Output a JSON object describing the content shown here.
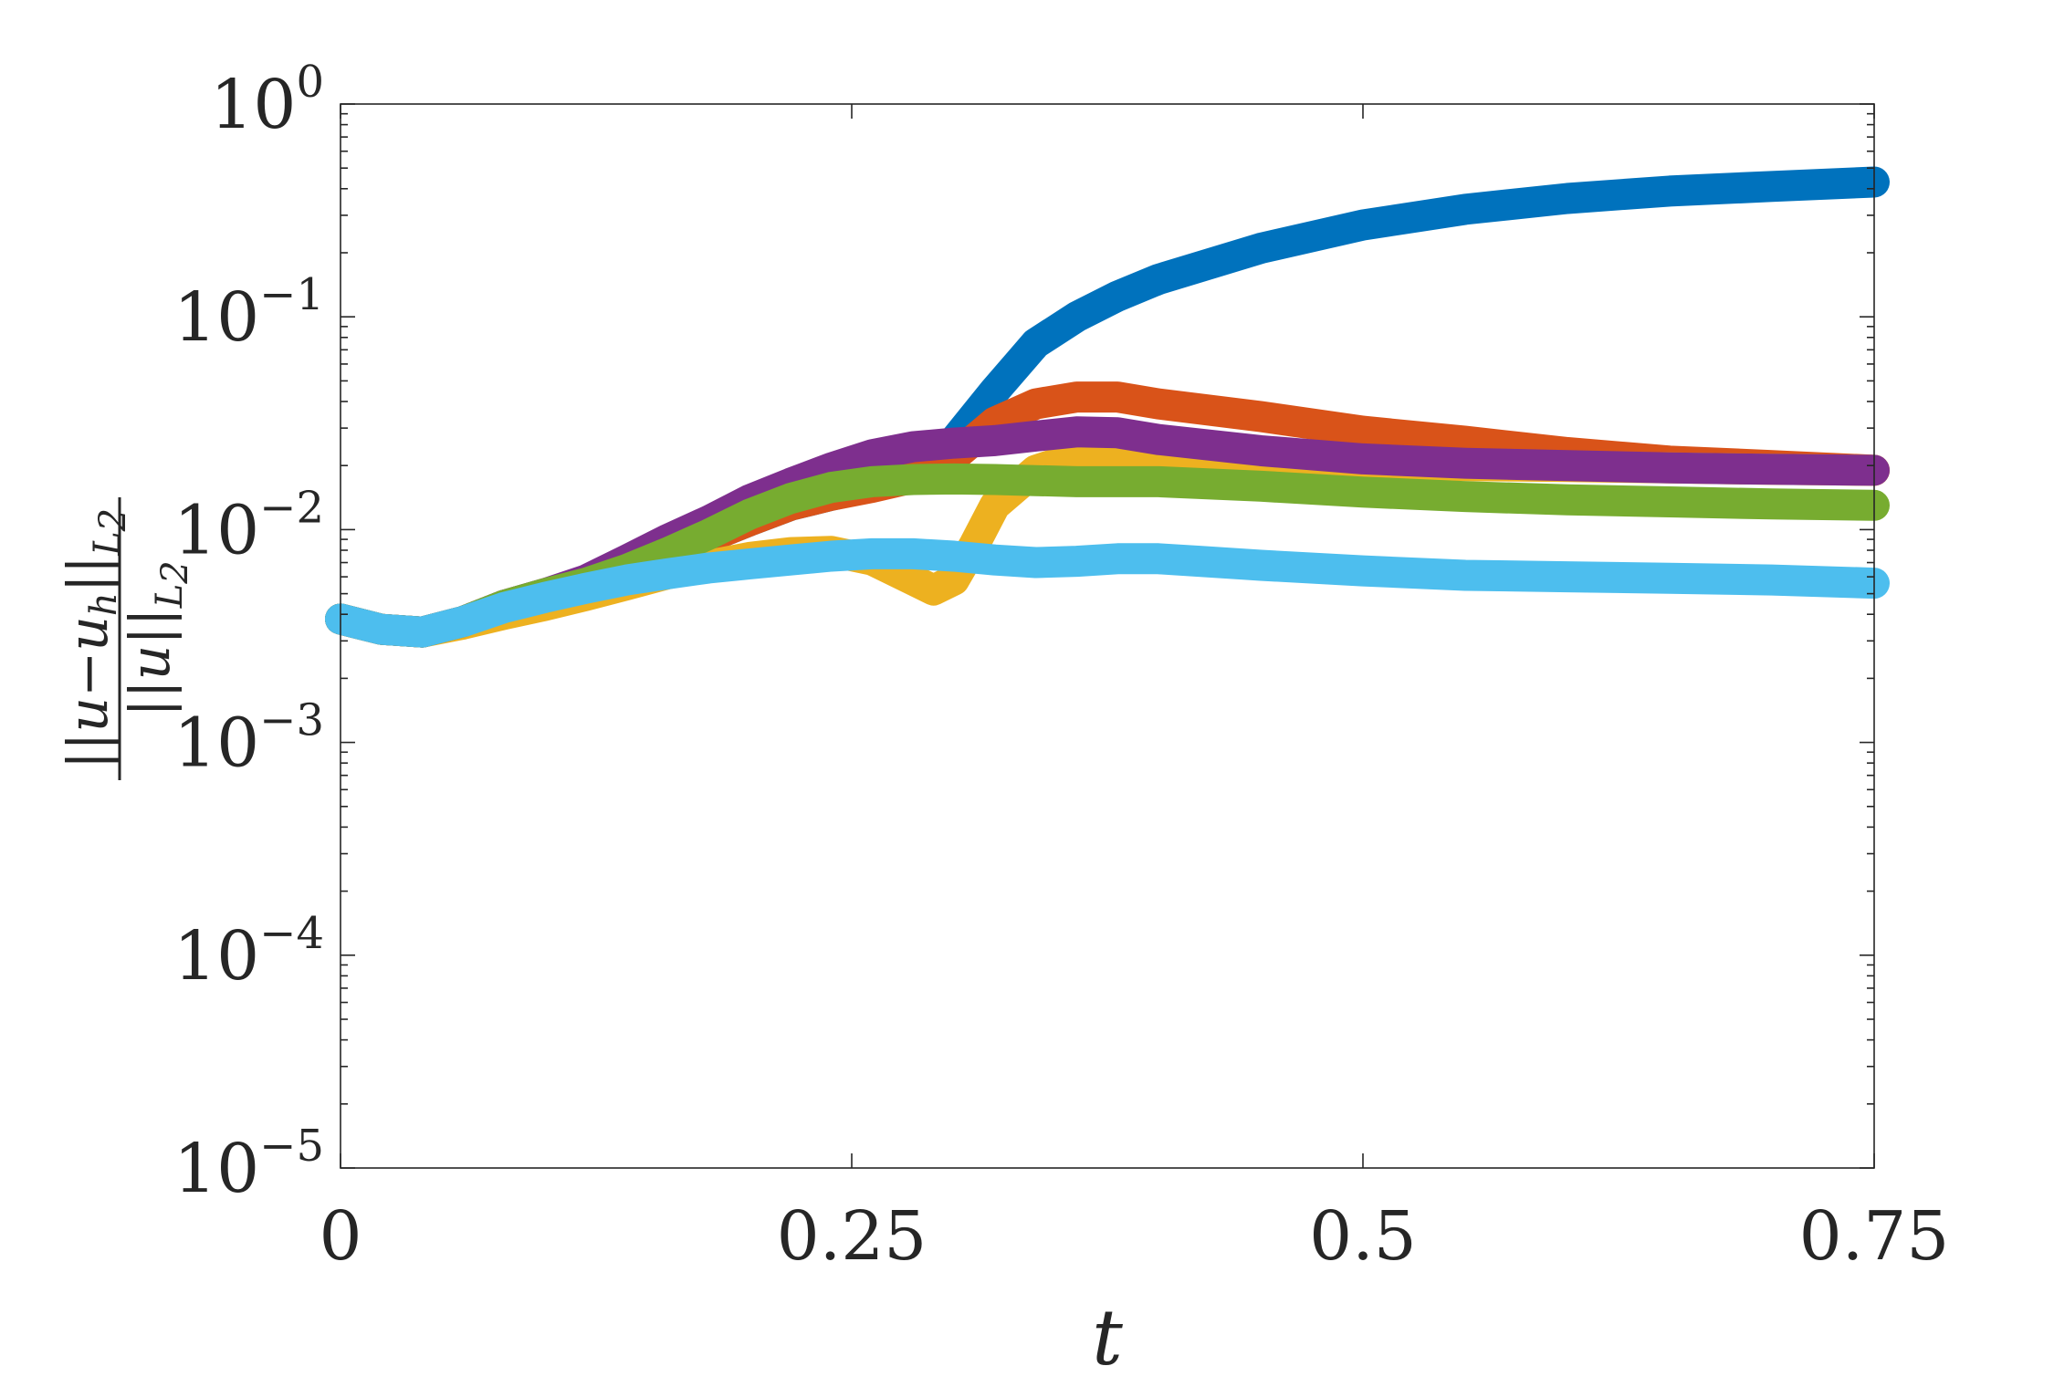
{
  "chart_data": {
    "type": "line",
    "title": "",
    "xlabel": "t",
    "ylabel": {
      "numerator": "||u−u",
      "numerator_sub": "h",
      "numerator_tail": "||",
      "numerator_norm_sub": "L",
      "numerator_norm_sub2": "2",
      "denominator": "||u||",
      "denominator_sub": "L",
      "denominator_sub2": "2"
    },
    "xlim": [
      0,
      0.75
    ],
    "ylim": [
      1e-05,
      1
    ],
    "yscale": "log",
    "grid": false,
    "legend": "none",
    "xticks": [
      {
        "value": 0,
        "label": "0"
      },
      {
        "value": 0.25,
        "label": "0.25"
      },
      {
        "value": 0.5,
        "label": "0.5"
      },
      {
        "value": 0.75,
        "label": "0.75"
      }
    ],
    "yticks": [
      {
        "value": 1,
        "base": "10",
        "exp": "0"
      },
      {
        "value": 0.1,
        "base": "10",
        "exp": "−1"
      },
      {
        "value": 0.01,
        "base": "10",
        "exp": "−2"
      },
      {
        "value": 0.001,
        "base": "10",
        "exp": "−3"
      },
      {
        "value": 0.0001,
        "base": "10",
        "exp": "−4"
      },
      {
        "value": 1e-05,
        "base": "10",
        "exp": "−5"
      }
    ],
    "series": [
      {
        "color": "#0072BD",
        "x": [
          0,
          0.02,
          0.04,
          0.06,
          0.08,
          0.1,
          0.12,
          0.14,
          0.16,
          0.18,
          0.2,
          0.22,
          0.24,
          0.26,
          0.28,
          0.3,
          0.32,
          0.34,
          0.36,
          0.38,
          0.4,
          0.45,
          0.5,
          0.55,
          0.6,
          0.65,
          0.7,
          0.75
        ],
        "y": [
          0.0038,
          0.0034,
          0.0033,
          0.0037,
          0.0044,
          0.005,
          0.0056,
          0.0065,
          0.0078,
          0.0092,
          0.011,
          0.013,
          0.0145,
          0.016,
          0.019,
          0.026,
          0.045,
          0.075,
          0.1,
          0.125,
          0.15,
          0.21,
          0.27,
          0.32,
          0.36,
          0.39,
          0.41,
          0.43
        ]
      },
      {
        "color": "#D95319",
        "x": [
          0,
          0.02,
          0.04,
          0.06,
          0.08,
          0.1,
          0.12,
          0.14,
          0.16,
          0.18,
          0.2,
          0.22,
          0.24,
          0.26,
          0.28,
          0.3,
          0.32,
          0.34,
          0.36,
          0.38,
          0.4,
          0.45,
          0.5,
          0.55,
          0.6,
          0.65,
          0.7,
          0.75
        ],
        "y": [
          0.0038,
          0.0034,
          0.0033,
          0.0037,
          0.0044,
          0.005,
          0.0056,
          0.0065,
          0.0078,
          0.0092,
          0.011,
          0.013,
          0.0145,
          0.0158,
          0.0175,
          0.022,
          0.032,
          0.039,
          0.042,
          0.042,
          0.039,
          0.034,
          0.029,
          0.026,
          0.023,
          0.021,
          0.02,
          0.019
        ]
      },
      {
        "color": "#EDB120",
        "x": [
          0,
          0.02,
          0.04,
          0.06,
          0.08,
          0.1,
          0.12,
          0.14,
          0.16,
          0.18,
          0.2,
          0.22,
          0.24,
          0.26,
          0.28,
          0.29,
          0.3,
          0.31,
          0.32,
          0.34,
          0.36,
          0.38,
          0.4,
          0.45,
          0.5,
          0.55,
          0.6,
          0.65,
          0.7,
          0.75
        ],
        "y": [
          0.0038,
          0.0034,
          0.0033,
          0.0036,
          0.004,
          0.0044,
          0.0049,
          0.0055,
          0.0062,
          0.0068,
          0.0074,
          0.0078,
          0.0079,
          0.0072,
          0.0058,
          0.0052,
          0.0058,
          0.0085,
          0.013,
          0.019,
          0.022,
          0.022,
          0.0215,
          0.021,
          0.0205,
          0.02,
          0.0198,
          0.0195,
          0.0192,
          0.019
        ]
      },
      {
        "color": "#7E2F8E",
        "x": [
          0,
          0.02,
          0.04,
          0.06,
          0.08,
          0.1,
          0.12,
          0.14,
          0.16,
          0.18,
          0.2,
          0.22,
          0.24,
          0.26,
          0.28,
          0.3,
          0.32,
          0.34,
          0.36,
          0.38,
          0.4,
          0.45,
          0.5,
          0.55,
          0.6,
          0.65,
          0.7,
          0.75
        ],
        "y": [
          0.0038,
          0.0034,
          0.0033,
          0.0037,
          0.0044,
          0.005,
          0.0058,
          0.0072,
          0.009,
          0.011,
          0.0138,
          0.0165,
          0.0195,
          0.0225,
          0.0245,
          0.0255,
          0.0262,
          0.0275,
          0.0288,
          0.0285,
          0.0265,
          0.0235,
          0.0215,
          0.0205,
          0.02,
          0.0195,
          0.0192,
          0.019
        ]
      },
      {
        "color": "#77AC30",
        "x": [
          0,
          0.02,
          0.04,
          0.06,
          0.08,
          0.1,
          0.12,
          0.14,
          0.16,
          0.18,
          0.2,
          0.22,
          0.24,
          0.26,
          0.28,
          0.3,
          0.32,
          0.34,
          0.36,
          0.38,
          0.4,
          0.45,
          0.5,
          0.55,
          0.6,
          0.65,
          0.7,
          0.75
        ],
        "y": [
          0.0038,
          0.0034,
          0.0033,
          0.0037,
          0.0044,
          0.005,
          0.0056,
          0.0065,
          0.0078,
          0.0095,
          0.0118,
          0.014,
          0.0158,
          0.0168,
          0.0172,
          0.0173,
          0.0172,
          0.017,
          0.0168,
          0.0168,
          0.0168,
          0.016,
          0.015,
          0.0143,
          0.0138,
          0.0135,
          0.0132,
          0.013
        ]
      },
      {
        "color": "#4DBEEE",
        "x": [
          0,
          0.02,
          0.04,
          0.06,
          0.08,
          0.1,
          0.12,
          0.14,
          0.16,
          0.18,
          0.2,
          0.22,
          0.24,
          0.26,
          0.28,
          0.3,
          0.32,
          0.34,
          0.36,
          0.38,
          0.4,
          0.42,
          0.45,
          0.5,
          0.55,
          0.6,
          0.65,
          0.7,
          0.75
        ],
        "y": [
          0.0038,
          0.0034,
          0.0033,
          0.0037,
          0.0043,
          0.0048,
          0.0053,
          0.0058,
          0.0062,
          0.0066,
          0.0069,
          0.0072,
          0.0075,
          0.0077,
          0.0077,
          0.0075,
          0.0072,
          0.007,
          0.0071,
          0.0073,
          0.0073,
          0.0071,
          0.0068,
          0.0064,
          0.0061,
          0.006,
          0.0059,
          0.0058,
          0.0056
        ]
      }
    ]
  }
}
